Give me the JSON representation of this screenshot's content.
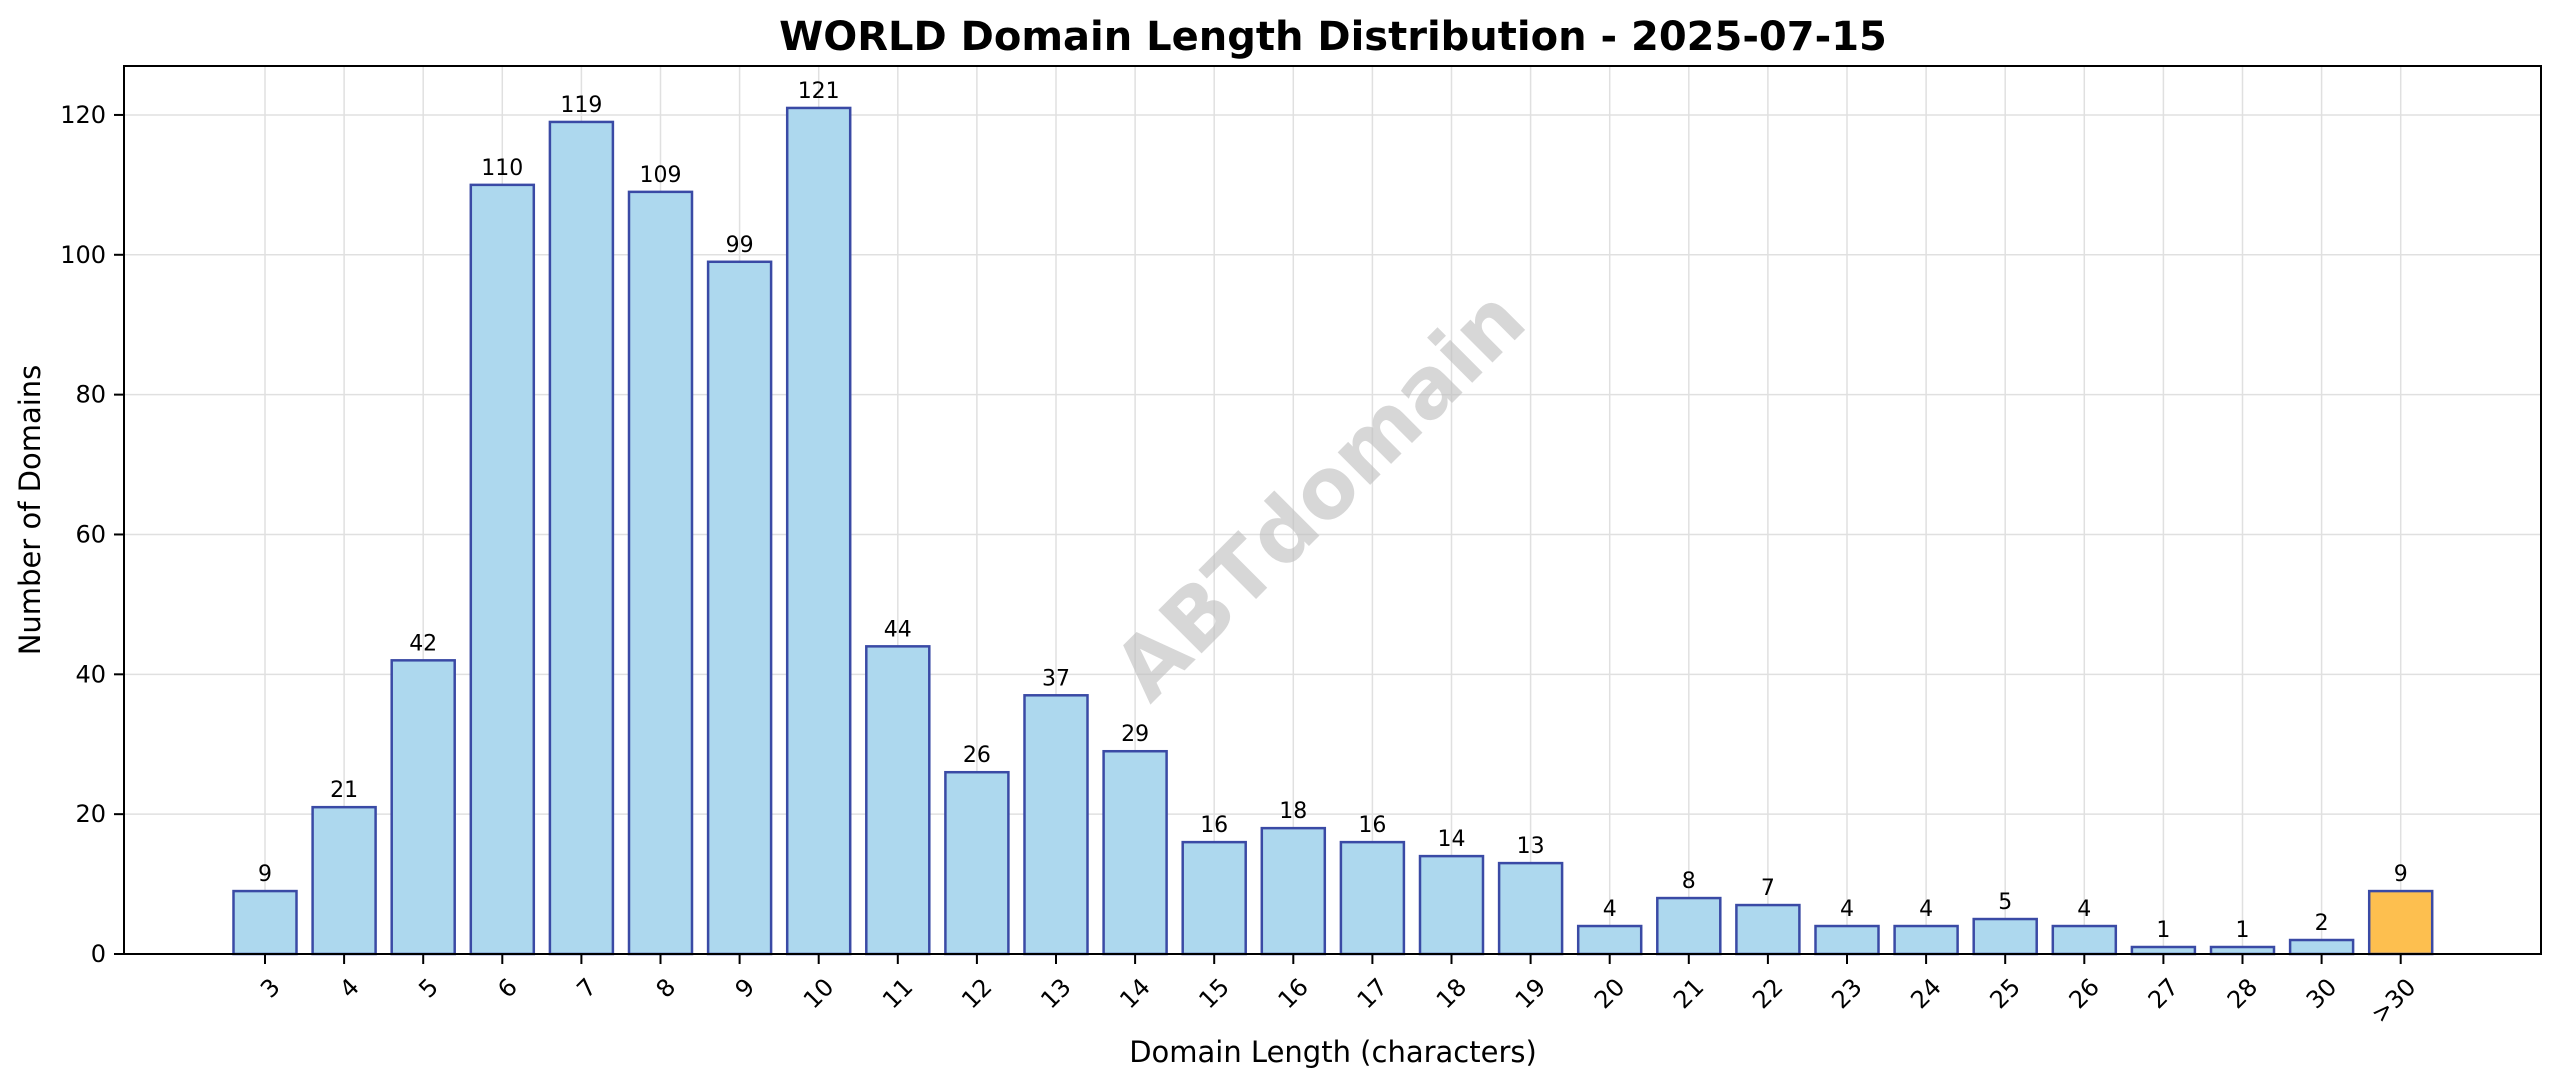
{
  "chart_data": {
    "type": "bar",
    "title": "WORLD Domain Length Distribution - 2025-07-15",
    "xlabel": "Domain Length (characters)",
    "ylabel": "Number of Domains",
    "categories": [
      "3",
      "4",
      "5",
      "6",
      "7",
      "8",
      "9",
      "10",
      "11",
      "12",
      "13",
      "14",
      "15",
      "16",
      "17",
      "18",
      "19",
      "20",
      "21",
      "22",
      "23",
      "24",
      "25",
      "26",
      "27",
      "28",
      "30",
      ">30"
    ],
    "values": [
      9,
      21,
      42,
      110,
      119,
      109,
      99,
      121,
      44,
      26,
      37,
      29,
      16,
      18,
      16,
      14,
      13,
      4,
      8,
      7,
      4,
      4,
      5,
      4,
      1,
      1,
      2,
      9
    ],
    "ylim": [
      0,
      127
    ],
    "yticks": [
      0,
      20,
      40,
      60,
      80,
      100,
      120
    ],
    "grid": true,
    "bar_color": "#add8ee",
    "bar_edge_color": "#3a4aa5",
    "highlight_category": ">30",
    "highlight_color": "#fdbf4f",
    "watermark": "ABTdomain"
  }
}
